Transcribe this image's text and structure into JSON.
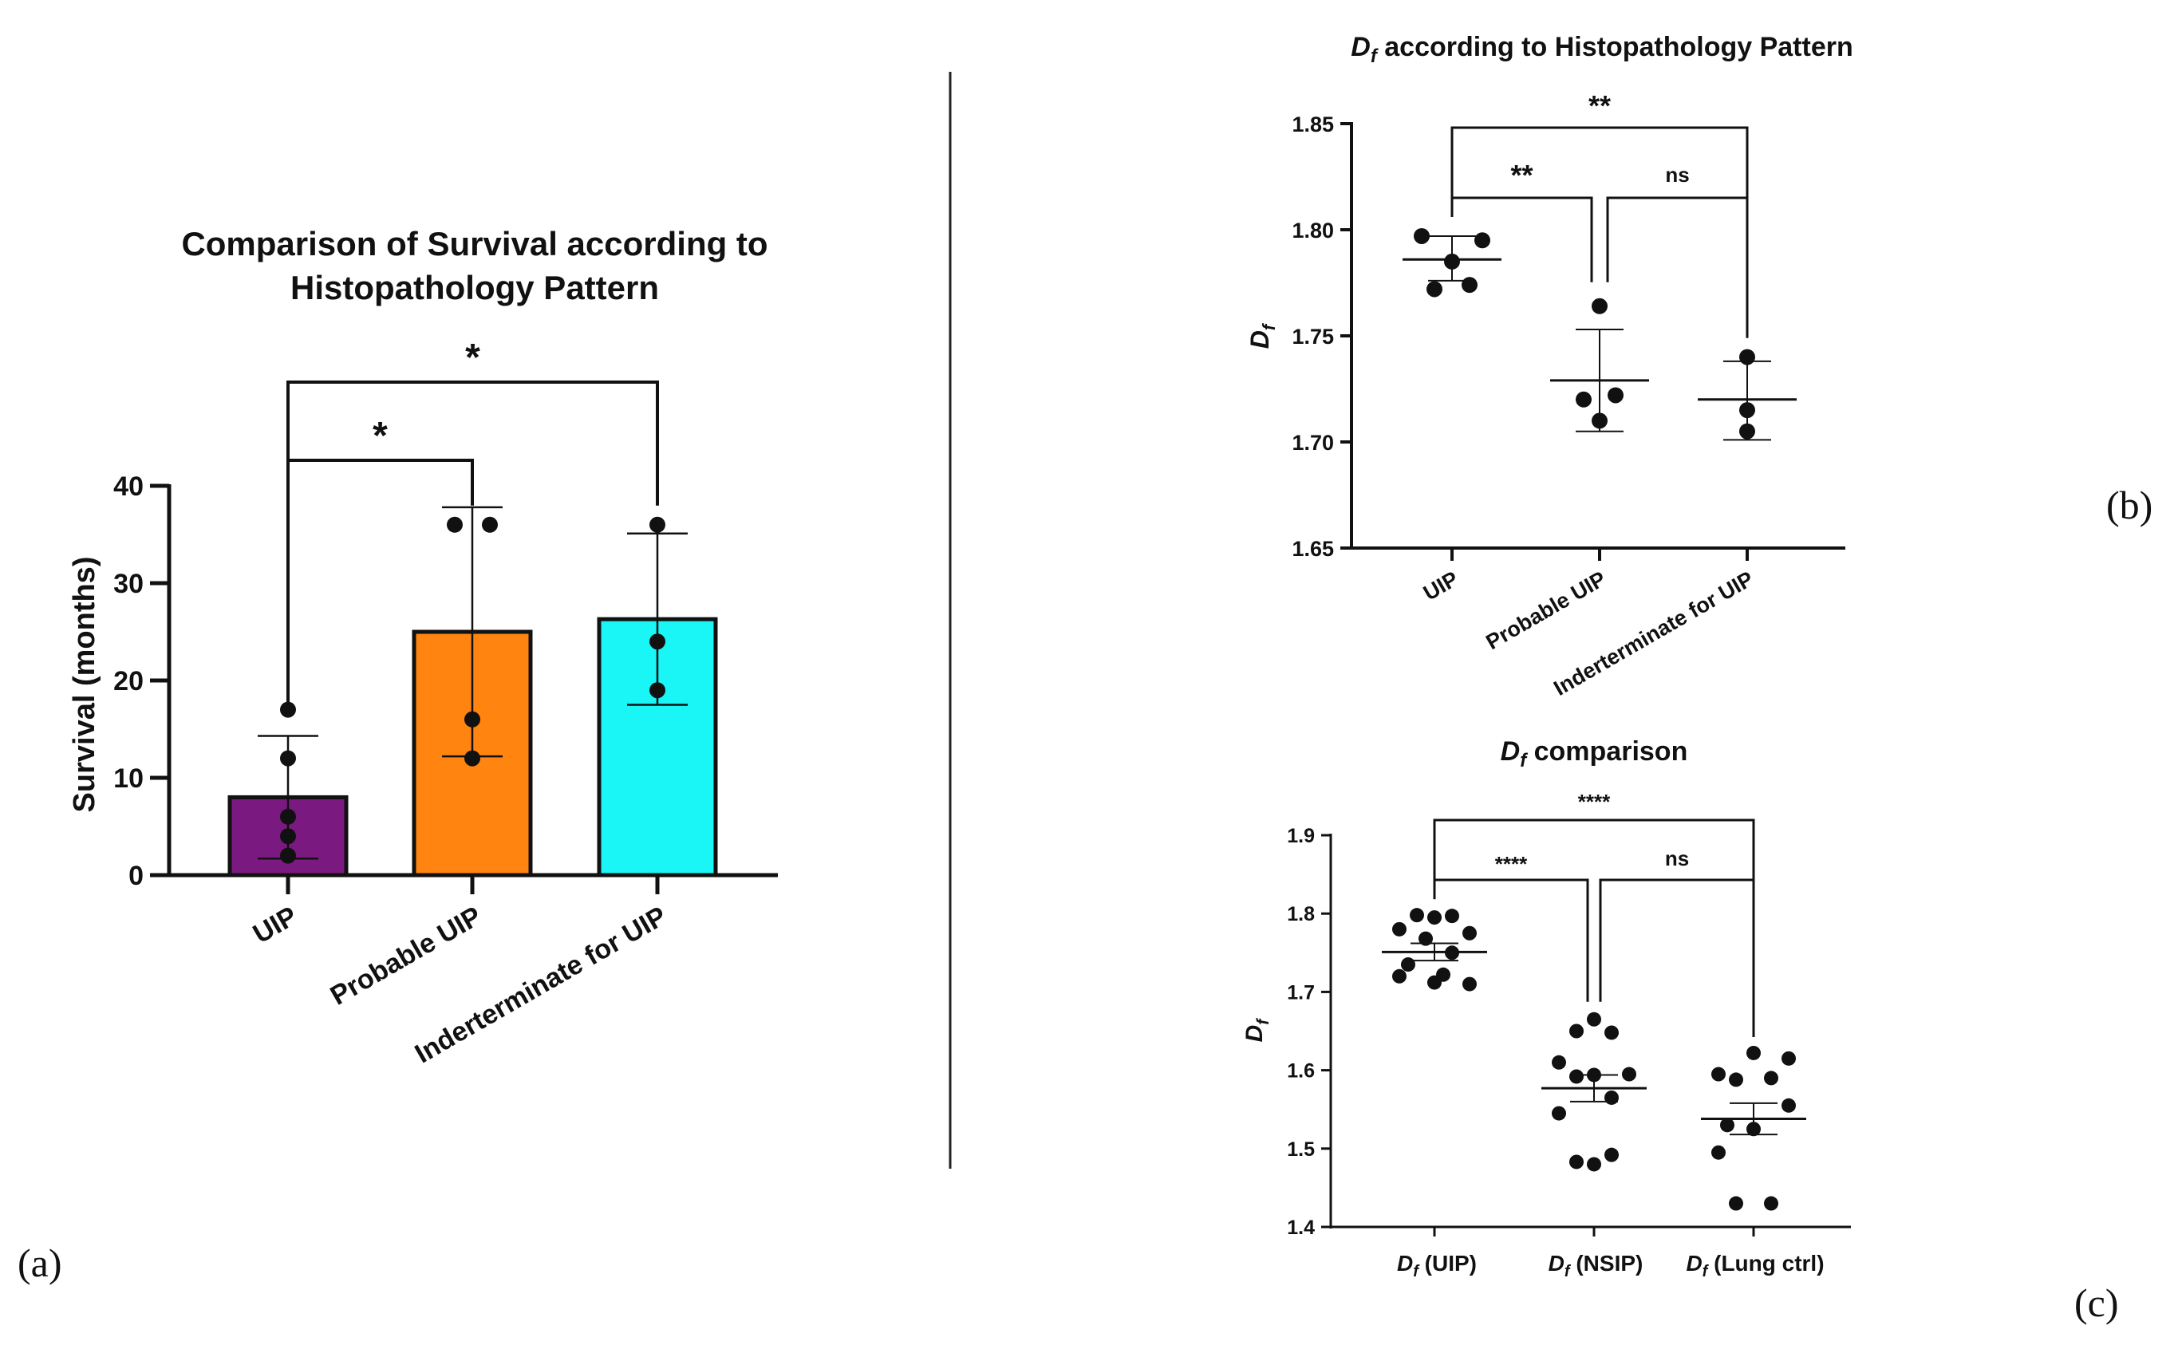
{
  "panels": {
    "a": "(a)",
    "b": "(b)",
    "c": "(c)"
  },
  "colors": {
    "uip": "#7a1a80",
    "probable": "#ff8410",
    "indeterminate": "#1af5f5",
    "ink": "#111111"
  },
  "chart_data": [
    {
      "id": "a",
      "type": "bar",
      "title_lines": [
        "Comparison of Survival according to",
        "Histopathology Pattern"
      ],
      "xlabel": "",
      "ylabel": "Survival (months)",
      "ylim": [
        0,
        40
      ],
      "yticks": [
        0,
        10,
        20,
        30,
        40
      ],
      "ytick_labels": [
        "0",
        "10",
        "20",
        "30",
        "40"
      ],
      "categories": [
        "UIP",
        "Probable UIP",
        "Inderterminate for UIP"
      ],
      "values": [
        8,
        25,
        26.3
      ],
      "sd": [
        6.3,
        12.8,
        8.8
      ],
      "points": [
        [
          17,
          12,
          6,
          4,
          2
        ],
        [
          36,
          36,
          16,
          12
        ],
        [
          36,
          24,
          19
        ]
      ],
      "significance": [
        {
          "from": 0,
          "to": 1,
          "label": "*"
        },
        {
          "from": 0,
          "to": 2,
          "label": "*"
        }
      ]
    },
    {
      "id": "b",
      "type": "scatter",
      "title_main": "D",
      "title_sub": "f",
      "title_rest": " according to Histopathology Pattern",
      "ylabel_main": "D",
      "ylabel_sub": "f",
      "ylim": [
        1.65,
        1.85
      ],
      "yticks": [
        1.65,
        1.7,
        1.75,
        1.8,
        1.85
      ],
      "ytick_labels": [
        "1.65",
        "1.70",
        "1.75",
        "1.80",
        "1.85"
      ],
      "categories": [
        "UIP",
        "Probable UIP",
        "Inderterminate for UIP"
      ],
      "means": [
        1.786,
        1.729,
        1.72
      ],
      "err_low": [
        1.776,
        1.705,
        1.701
      ],
      "err_high": [
        1.797,
        1.753,
        1.738
      ],
      "points": [
        [
          1.797,
          1.795,
          1.785,
          1.772,
          1.774
        ],
        [
          1.764,
          1.72,
          1.71,
          1.722
        ],
        [
          1.74,
          1.715,
          1.705
        ]
      ],
      "point_offsets": [
        [
          -0.38,
          0.38,
          0.0,
          -0.22,
          0.22
        ],
        [
          0.0,
          -0.2,
          0.0,
          0.2
        ],
        [
          0.0,
          0.0,
          0.0
        ]
      ],
      "significance": [
        {
          "from": 0,
          "to": 1,
          "label": "**"
        },
        {
          "from": 1,
          "to": 2,
          "label": "ns"
        },
        {
          "from": 0,
          "to": 2,
          "label": "**"
        }
      ]
    },
    {
      "id": "c",
      "type": "scatter",
      "title_main": "D",
      "title_sub": "f",
      "title_rest": " comparison",
      "ylabel_main": "D",
      "ylabel_sub": "f",
      "ylim": [
        1.4,
        1.9
      ],
      "yticks": [
        1.4,
        1.5,
        1.6,
        1.7,
        1.8,
        1.9
      ],
      "ytick_labels": [
        "1.4",
        "1.5",
        "1.6",
        "1.7",
        "1.8",
        "1.9"
      ],
      "categories_main": [
        "D",
        "D",
        "D"
      ],
      "categories_sub": [
        "f",
        "f",
        "f"
      ],
      "categories_rest": [
        " (UIP)",
        " (NSIP)",
        " (Lung ctrl)"
      ],
      "means": [
        1.751,
        1.577,
        1.538
      ],
      "sem": [
        0.011,
        0.017,
        0.02
      ],
      "points": [
        [
          1.798,
          1.795,
          1.797,
          1.78,
          1.775,
          1.768,
          1.75,
          1.735,
          1.722,
          1.72,
          1.712,
          1.71
        ],
        [
          1.665,
          1.65,
          1.648,
          1.61,
          1.595,
          1.594,
          1.592,
          1.565,
          1.545,
          1.492,
          1.483,
          1.48
        ],
        [
          1.622,
          1.615,
          1.595,
          1.59,
          1.588,
          1.555,
          1.53,
          1.525,
          1.495,
          1.43,
          1.43
        ]
      ],
      "point_offsets": [
        [
          -0.22,
          0.0,
          0.22,
          -0.44,
          0.44,
          -0.11,
          0.22,
          -0.33,
          0.11,
          -0.44,
          0.0,
          0.44
        ],
        [
          0.0,
          -0.22,
          0.22,
          -0.44,
          0.44,
          0.0,
          -0.22,
          0.22,
          -0.44,
          0.22,
          -0.22,
          0.0
        ],
        [
          0.0,
          0.44,
          -0.44,
          0.22,
          -0.22,
          0.44,
          -0.33,
          0.0,
          -0.44,
          -0.22,
          0.22
        ]
      ],
      "significance": [
        {
          "from": 0,
          "to": 1,
          "label": "****"
        },
        {
          "from": 1,
          "to": 2,
          "label": "ns"
        },
        {
          "from": 0,
          "to": 2,
          "label": "****"
        }
      ]
    }
  ]
}
